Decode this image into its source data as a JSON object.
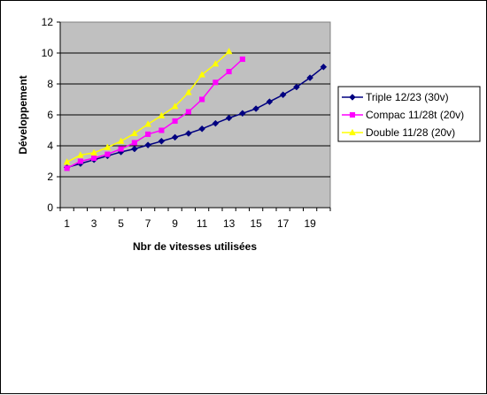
{
  "chart_data": {
    "type": "line",
    "title": "",
    "xlabel": "Nbr de vitesses utilisées",
    "ylabel": "Développement",
    "xlim": [
      1,
      20
    ],
    "ylim": [
      0,
      12
    ],
    "yticks": [
      0,
      2,
      4,
      6,
      8,
      10,
      12
    ],
    "xticks": [
      1,
      3,
      5,
      7,
      9,
      11,
      13,
      15,
      17,
      19
    ],
    "grid": "horizontal",
    "plot_background": "#c0c0c0",
    "legend_position": "right",
    "series": [
      {
        "name": "Triple 12/23 (30v)",
        "color": "#000080",
        "marker": "diamond",
        "x": [
          1,
          2,
          3,
          4,
          5,
          6,
          7,
          8,
          9,
          10,
          11,
          12,
          13,
          14,
          15,
          16,
          17,
          18,
          19,
          20
        ],
        "values": [
          2.6,
          2.85,
          3.1,
          3.35,
          3.6,
          3.8,
          4.05,
          4.3,
          4.55,
          4.8,
          5.1,
          5.45,
          5.8,
          6.1,
          6.4,
          6.85,
          7.3,
          7.8,
          8.4,
          9.1
        ]
      },
      {
        "name": "Compac 11/28t (20v)",
        "color": "#ff00ff",
        "marker": "square",
        "x": [
          1,
          2,
          3,
          4,
          5,
          6,
          7,
          8,
          9,
          10,
          11,
          12,
          13,
          14
        ],
        "values": [
          2.55,
          3.0,
          3.2,
          3.45,
          3.8,
          4.2,
          4.75,
          5.0,
          5.6,
          6.2,
          7.0,
          8.1,
          8.8,
          9.6
        ]
      },
      {
        "name": "Double 11/28 (20v)",
        "color": "#ffff00",
        "marker": "triangle",
        "x": [
          1,
          2,
          3,
          4,
          5,
          6,
          7,
          8,
          9,
          10,
          11,
          12,
          13
        ],
        "values": [
          2.95,
          3.4,
          3.55,
          3.9,
          4.3,
          4.8,
          5.4,
          5.95,
          6.55,
          7.45,
          8.6,
          9.3,
          10.1
        ]
      }
    ]
  }
}
